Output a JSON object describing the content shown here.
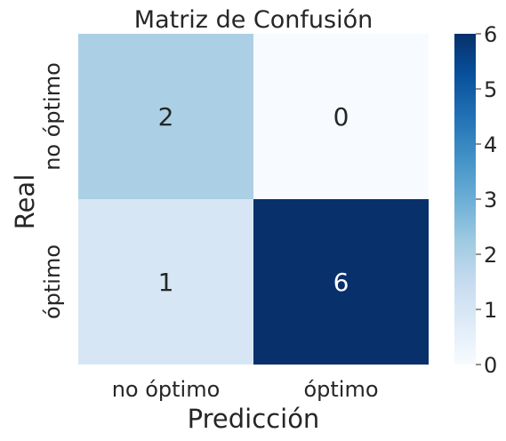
{
  "chart_data": {
    "type": "heatmap",
    "title": "Matriz de Confusión",
    "xlabel": "Predicción",
    "ylabel": "Real",
    "x_categories": [
      "no óptimo",
      "óptimo"
    ],
    "y_categories": [
      "no óptimo",
      "óptimo"
    ],
    "values": [
      [
        2,
        0
      ],
      [
        1,
        6
      ]
    ],
    "colorbar": {
      "min": 0,
      "max": 6,
      "ticks": [
        "0",
        "1",
        "2",
        "3",
        "4",
        "5",
        "6"
      ],
      "colormap": "Blues"
    },
    "colors": {
      "cell_2": "#abd0e6",
      "cell_0": "#f7fbff",
      "cell_1": "#d6e6f4",
      "cell_6": "#08306b",
      "dark_text": "#262626",
      "light_text": "#ffffff"
    }
  }
}
